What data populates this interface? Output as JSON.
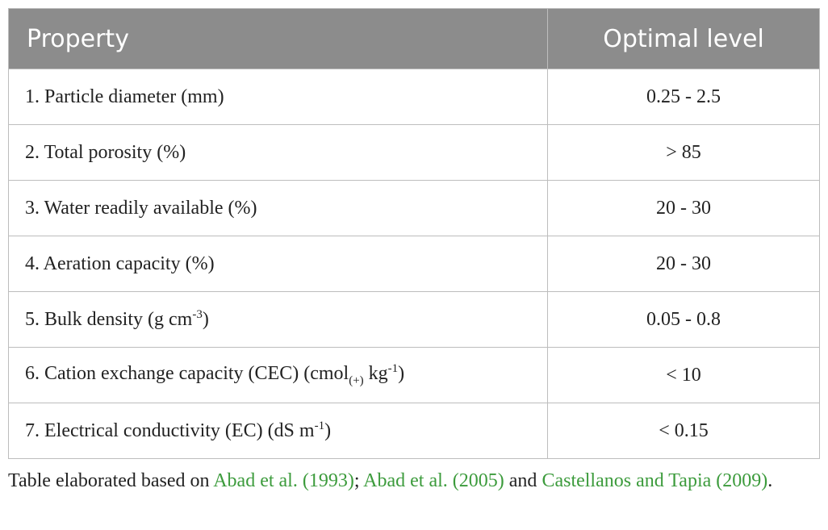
{
  "table": {
    "header": [
      "Property",
      "Optimal level"
    ],
    "rows": [
      {
        "property": [
          {
            "text": "1. Particle diameter (mm)"
          }
        ],
        "level": "0.25 - 2.5"
      },
      {
        "property": [
          {
            "text": "2. Total porosity (%)"
          }
        ],
        "level": "> 85"
      },
      {
        "property": [
          {
            "text": "3. Water readily available (%)"
          }
        ],
        "level": "20 - 30"
      },
      {
        "property": [
          {
            "text": "4. Aeration capacity (%)"
          }
        ],
        "level": "20 - 30"
      },
      {
        "property": [
          {
            "text": "5. Bulk density (g cm"
          },
          {
            "sup": "-3"
          },
          {
            "text": ")"
          }
        ],
        "level": "0.05 - 0.8"
      },
      {
        "property": [
          {
            "text": "6. Cation exchange capacity (CEC) (cmol"
          },
          {
            "sub": "(+)"
          },
          {
            "text": " kg"
          },
          {
            "sup": "-1"
          },
          {
            "text": ")"
          }
        ],
        "level": "< 10"
      },
      {
        "property": [
          {
            "text": "7. Electrical conductivity (EC) (dS m"
          },
          {
            "sup": "-1"
          },
          {
            "text": ")"
          }
        ],
        "level": "< 0.15"
      }
    ]
  },
  "footnote": [
    {
      "text": "Table elaborated based on "
    },
    {
      "link": "Abad et al. (1993)"
    },
    {
      "text": "; "
    },
    {
      "link": "Abad et al. (2005)"
    },
    {
      "text": " and "
    },
    {
      "link": "Castellanos and Tapia (2009)"
    },
    {
      "text": "."
    }
  ]
}
